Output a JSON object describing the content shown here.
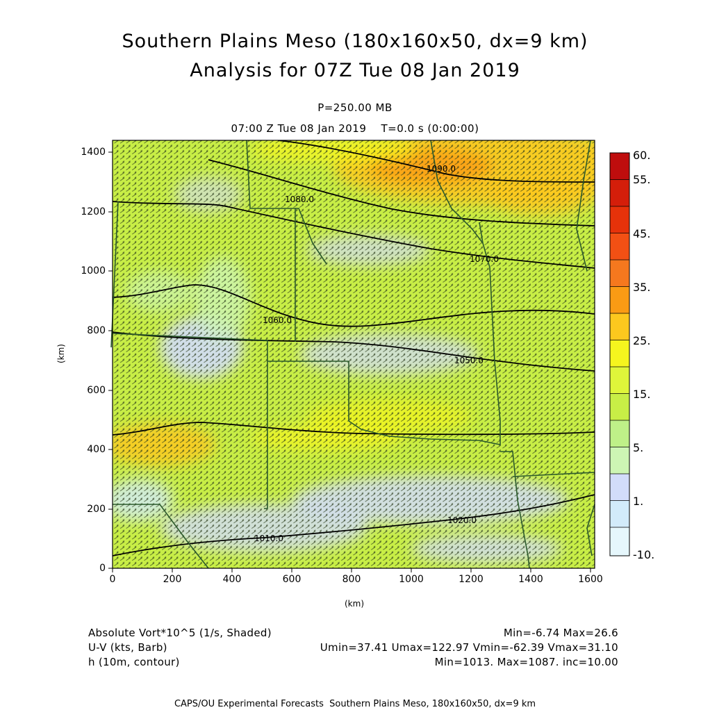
{
  "header": {
    "title_line1": "Southern Plains Meso (180x160x50, dx=9 km)",
    "title_line2": "Analysis for 07Z Tue 08 Jan 2019",
    "level": "P=250.00 MB",
    "time": "07:00 Z Tue 08 Jan 2019    T=0.0 s (0:00:00)"
  },
  "axes": {
    "x_ticks": [
      "0",
      "200",
      "400",
      "600",
      "800",
      "1000",
      "1200",
      "1400",
      "1600"
    ],
    "y_ticks": [
      "0",
      "200",
      "400",
      "600",
      "800",
      "1000",
      "1200",
      "1400"
    ],
    "x_unit": "(km)",
    "y_unit": "(km)"
  },
  "colorbar": {
    "labels": [
      "60.",
      "55.",
      "45.",
      "35.",
      "25.",
      "15.",
      "5.",
      "1.",
      "-10."
    ],
    "colors": [
      "#bf0d0d",
      "#d41e0a",
      "#e6320a",
      "#f25014",
      "#f5781e",
      "#fa9b14",
      "#fcc81e",
      "#f5f51e",
      "#c8ee46",
      "#cdf5b4",
      "#d2dcfa",
      "#d2ebfa",
      "#e6f7fc"
    ]
  },
  "contours": {
    "labels": [
      "1090.0",
      "1080.0",
      "1070.0",
      "1060.0",
      "1050.0",
      "1040.0",
      "1030.0",
      "1020.0",
      "1010.0"
    ]
  },
  "footer": {
    "vort_label": "Absolute Vort*10^5 (1/s, Shaded)",
    "vort_stats": "Min=-6.74 Max=26.6",
    "wind_label": "U-V (kts, Barb)",
    "wind_stats": "Umin=37.41 Umax=122.97 Vmin=-62.39 Vmax=31.10",
    "height_label": "h (10m, contour)",
    "height_stats": "Min=1013. Max=1087. inc=10.00",
    "credit": "CAPS/OU Experimental Forecasts  Southern Plains Meso, 180x160x50, dx=9 km"
  },
  "colors": {
    "background_field": "#c8ee46",
    "contour": "#000000",
    "state_border": "#2b5a2b",
    "barb": "#2a3a1a"
  }
}
